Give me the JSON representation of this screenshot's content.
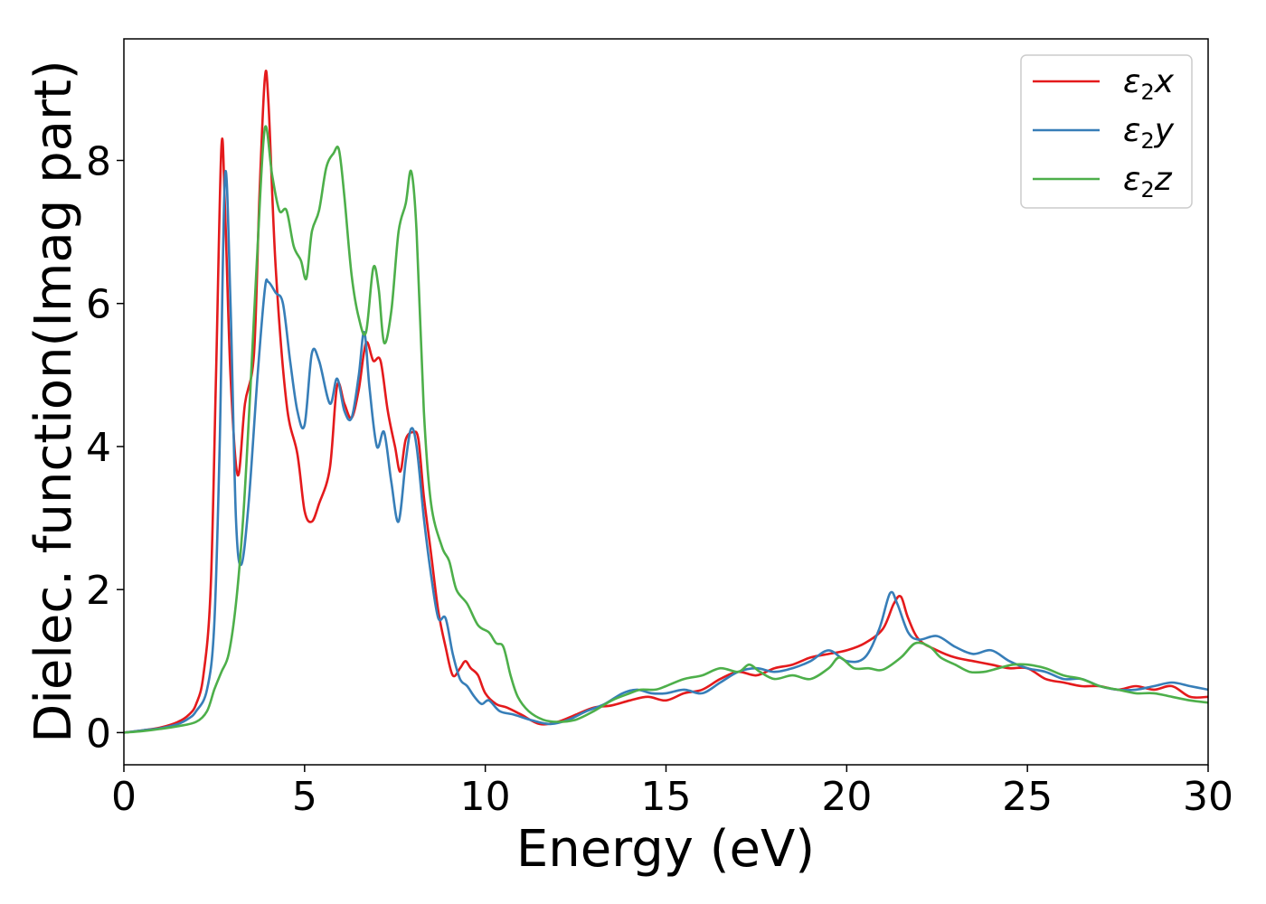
{
  "chart_data": {
    "type": "line",
    "xlabel": "Energy (eV)",
    "ylabel": "Dielec. function(Imag part)",
    "xlim": [
      0,
      30
    ],
    "ylim": [
      -0.45,
      9.7
    ],
    "xticks": [
      0,
      5,
      10,
      15,
      20,
      25,
      30
    ],
    "yticks": [
      0,
      2,
      4,
      6,
      8
    ],
    "xtick_labels": [
      "0",
      "5",
      "10",
      "15",
      "20",
      "25",
      "30"
    ],
    "ytick_labels": [
      "0",
      "2",
      "4",
      "6",
      "8"
    ],
    "grid": false,
    "legend_position": "top-right",
    "series": [
      {
        "label": {
          "base": "ε",
          "sub": "2",
          "var": "x"
        },
        "color": "#e41a1c",
        "points": [
          [
            0,
            0
          ],
          [
            0.5,
            0.03
          ],
          [
            1.0,
            0.07
          ],
          [
            1.5,
            0.15
          ],
          [
            1.8,
            0.25
          ],
          [
            2.0,
            0.4
          ],
          [
            2.2,
            0.8
          ],
          [
            2.4,
            2.0
          ],
          [
            2.55,
            5.0
          ],
          [
            2.7,
            8.2
          ],
          [
            2.8,
            7.3
          ],
          [
            2.95,
            5.0
          ],
          [
            3.15,
            3.6
          ],
          [
            3.35,
            4.6
          ],
          [
            3.6,
            5.3
          ],
          [
            3.75,
            7.5
          ],
          [
            3.9,
            9.15
          ],
          [
            4.0,
            8.8
          ],
          [
            4.2,
            6.5
          ],
          [
            4.5,
            4.6
          ],
          [
            4.8,
            3.9
          ],
          [
            5.0,
            3.1
          ],
          [
            5.2,
            2.95
          ],
          [
            5.4,
            3.2
          ],
          [
            5.7,
            3.7
          ],
          [
            5.9,
            4.85
          ],
          [
            6.1,
            4.6
          ],
          [
            6.3,
            4.4
          ],
          [
            6.5,
            4.8
          ],
          [
            6.7,
            5.45
          ],
          [
            6.9,
            5.2
          ],
          [
            7.1,
            5.2
          ],
          [
            7.3,
            4.5
          ],
          [
            7.5,
            4.0
          ],
          [
            7.65,
            3.65
          ],
          [
            7.8,
            4.1
          ],
          [
            8.0,
            4.2
          ],
          [
            8.15,
            4.1
          ],
          [
            8.3,
            3.3
          ],
          [
            8.5,
            2.5
          ],
          [
            8.7,
            1.7
          ],
          [
            8.9,
            1.2
          ],
          [
            9.1,
            0.8
          ],
          [
            9.3,
            0.9
          ],
          [
            9.45,
            1.0
          ],
          [
            9.6,
            0.9
          ],
          [
            9.8,
            0.8
          ],
          [
            10.0,
            0.55
          ],
          [
            10.3,
            0.4
          ],
          [
            10.6,
            0.35
          ],
          [
            11.0,
            0.25
          ],
          [
            11.5,
            0.12
          ],
          [
            12.0,
            0.15
          ],
          [
            12.5,
            0.25
          ],
          [
            13.0,
            0.35
          ],
          [
            13.5,
            0.38
          ],
          [
            14.0,
            0.45
          ],
          [
            14.5,
            0.5
          ],
          [
            15.0,
            0.45
          ],
          [
            15.5,
            0.55
          ],
          [
            16.0,
            0.6
          ],
          [
            16.5,
            0.75
          ],
          [
            17.0,
            0.85
          ],
          [
            17.5,
            0.8
          ],
          [
            18.0,
            0.9
          ],
          [
            18.5,
            0.95
          ],
          [
            19.0,
            1.05
          ],
          [
            19.5,
            1.1
          ],
          [
            20.0,
            1.15
          ],
          [
            20.5,
            1.25
          ],
          [
            21.0,
            1.45
          ],
          [
            21.3,
            1.8
          ],
          [
            21.5,
            1.9
          ],
          [
            21.7,
            1.6
          ],
          [
            22.0,
            1.3
          ],
          [
            22.5,
            1.15
          ],
          [
            23.0,
            1.05
          ],
          [
            23.5,
            1.0
          ],
          [
            24.0,
            0.95
          ],
          [
            24.5,
            0.9
          ],
          [
            25.0,
            0.9
          ],
          [
            25.5,
            0.75
          ],
          [
            26.0,
            0.7
          ],
          [
            26.5,
            0.65
          ],
          [
            27.0,
            0.65
          ],
          [
            27.5,
            0.6
          ],
          [
            28.0,
            0.65
          ],
          [
            28.5,
            0.6
          ],
          [
            29.0,
            0.65
          ],
          [
            29.5,
            0.5
          ],
          [
            30.0,
            0.5
          ]
        ]
      },
      {
        "label": {
          "base": "ε",
          "sub": "2",
          "var": "y"
        },
        "color": "#377eb8",
        "points": [
          [
            0,
            0
          ],
          [
            0.5,
            0.03
          ],
          [
            1.0,
            0.06
          ],
          [
            1.5,
            0.12
          ],
          [
            1.8,
            0.2
          ],
          [
            2.0,
            0.3
          ],
          [
            2.3,
            0.6
          ],
          [
            2.5,
            1.5
          ],
          [
            2.65,
            4.0
          ],
          [
            2.8,
            7.8
          ],
          [
            2.95,
            6.0
          ],
          [
            3.1,
            3.0
          ],
          [
            3.25,
            2.35
          ],
          [
            3.45,
            3.2
          ],
          [
            3.7,
            5.0
          ],
          [
            3.9,
            6.2
          ],
          [
            4.0,
            6.3
          ],
          [
            4.2,
            6.15
          ],
          [
            4.4,
            6.0
          ],
          [
            4.6,
            5.2
          ],
          [
            4.8,
            4.5
          ],
          [
            5.0,
            4.3
          ],
          [
            5.2,
            5.3
          ],
          [
            5.4,
            5.2
          ],
          [
            5.7,
            4.6
          ],
          [
            5.9,
            4.95
          ],
          [
            6.1,
            4.5
          ],
          [
            6.3,
            4.4
          ],
          [
            6.5,
            5.0
          ],
          [
            6.65,
            5.6
          ],
          [
            6.8,
            4.8
          ],
          [
            7.0,
            4.0
          ],
          [
            7.2,
            4.2
          ],
          [
            7.4,
            3.5
          ],
          [
            7.6,
            2.95
          ],
          [
            7.8,
            3.8
          ],
          [
            7.95,
            4.25
          ],
          [
            8.1,
            4.0
          ],
          [
            8.3,
            3.0
          ],
          [
            8.5,
            2.2
          ],
          [
            8.7,
            1.6
          ],
          [
            8.9,
            1.6
          ],
          [
            9.1,
            1.1
          ],
          [
            9.3,
            0.75
          ],
          [
            9.5,
            0.65
          ],
          [
            9.7,
            0.5
          ],
          [
            9.9,
            0.4
          ],
          [
            10.1,
            0.45
          ],
          [
            10.4,
            0.3
          ],
          [
            10.8,
            0.25
          ],
          [
            11.3,
            0.17
          ],
          [
            11.8,
            0.12
          ],
          [
            12.3,
            0.18
          ],
          [
            12.8,
            0.3
          ],
          [
            13.3,
            0.4
          ],
          [
            13.8,
            0.55
          ],
          [
            14.2,
            0.6
          ],
          [
            14.6,
            0.55
          ],
          [
            15.0,
            0.55
          ],
          [
            15.5,
            0.6
          ],
          [
            16.0,
            0.55
          ],
          [
            16.5,
            0.7
          ],
          [
            17.0,
            0.85
          ],
          [
            17.5,
            0.9
          ],
          [
            18.0,
            0.85
          ],
          [
            18.5,
            0.9
          ],
          [
            19.0,
            1.0
          ],
          [
            19.5,
            1.15
          ],
          [
            20.0,
            1.0
          ],
          [
            20.5,
            1.05
          ],
          [
            20.9,
            1.45
          ],
          [
            21.2,
            1.95
          ],
          [
            21.4,
            1.8
          ],
          [
            21.7,
            1.4
          ],
          [
            22.0,
            1.3
          ],
          [
            22.5,
            1.35
          ],
          [
            23.0,
            1.2
          ],
          [
            23.5,
            1.1
          ],
          [
            24.0,
            1.15
          ],
          [
            24.5,
            1.0
          ],
          [
            25.0,
            0.9
          ],
          [
            25.5,
            0.85
          ],
          [
            26.0,
            0.75
          ],
          [
            26.5,
            0.75
          ],
          [
            27.0,
            0.65
          ],
          [
            27.5,
            0.6
          ],
          [
            28.0,
            0.6
          ],
          [
            28.5,
            0.65
          ],
          [
            29.0,
            0.7
          ],
          [
            29.5,
            0.65
          ],
          [
            30.0,
            0.6
          ]
        ]
      },
      {
        "label": {
          "base": "ε",
          "sub": "2",
          "var": "z"
        },
        "color": "#4daf4a",
        "points": [
          [
            0,
            0
          ],
          [
            0.5,
            0.02
          ],
          [
            1.0,
            0.05
          ],
          [
            1.5,
            0.09
          ],
          [
            2.0,
            0.15
          ],
          [
            2.3,
            0.3
          ],
          [
            2.5,
            0.6
          ],
          [
            2.7,
            0.85
          ],
          [
            2.9,
            1.1
          ],
          [
            3.1,
            1.8
          ],
          [
            3.3,
            3.0
          ],
          [
            3.5,
            4.8
          ],
          [
            3.7,
            6.8
          ],
          [
            3.9,
            8.45
          ],
          [
            4.1,
            7.8
          ],
          [
            4.3,
            7.3
          ],
          [
            4.5,
            7.3
          ],
          [
            4.7,
            6.8
          ],
          [
            4.9,
            6.6
          ],
          [
            5.05,
            6.35
          ],
          [
            5.2,
            7.0
          ],
          [
            5.4,
            7.3
          ],
          [
            5.6,
            7.9
          ],
          [
            5.8,
            8.1
          ],
          [
            5.95,
            8.15
          ],
          [
            6.1,
            7.5
          ],
          [
            6.3,
            6.4
          ],
          [
            6.5,
            5.8
          ],
          [
            6.7,
            5.6
          ],
          [
            6.9,
            6.5
          ],
          [
            7.05,
            6.2
          ],
          [
            7.2,
            5.45
          ],
          [
            7.4,
            5.9
          ],
          [
            7.6,
            7.0
          ],
          [
            7.8,
            7.4
          ],
          [
            7.95,
            7.85
          ],
          [
            8.1,
            7.0
          ],
          [
            8.3,
            4.5
          ],
          [
            8.5,
            3.2
          ],
          [
            8.8,
            2.6
          ],
          [
            9.0,
            2.4
          ],
          [
            9.2,
            2.0
          ],
          [
            9.5,
            1.8
          ],
          [
            9.8,
            1.5
          ],
          [
            10.1,
            1.4
          ],
          [
            10.3,
            1.25
          ],
          [
            10.5,
            1.2
          ],
          [
            10.7,
            0.8
          ],
          [
            10.9,
            0.5
          ],
          [
            11.2,
            0.3
          ],
          [
            11.6,
            0.18
          ],
          [
            12.0,
            0.15
          ],
          [
            12.5,
            0.18
          ],
          [
            13.0,
            0.3
          ],
          [
            13.5,
            0.45
          ],
          [
            14.0,
            0.55
          ],
          [
            14.3,
            0.6
          ],
          [
            14.7,
            0.6
          ],
          [
            15.0,
            0.65
          ],
          [
            15.5,
            0.75
          ],
          [
            16.0,
            0.8
          ],
          [
            16.5,
            0.9
          ],
          [
            17.0,
            0.85
          ],
          [
            17.3,
            0.95
          ],
          [
            17.6,
            0.85
          ],
          [
            18.0,
            0.75
          ],
          [
            18.5,
            0.8
          ],
          [
            19.0,
            0.75
          ],
          [
            19.5,
            0.9
          ],
          [
            19.8,
            1.05
          ],
          [
            20.2,
            0.9
          ],
          [
            20.6,
            0.9
          ],
          [
            21.0,
            0.88
          ],
          [
            21.5,
            1.05
          ],
          [
            21.9,
            1.25
          ],
          [
            22.3,
            1.2
          ],
          [
            22.6,
            1.05
          ],
          [
            23.0,
            0.95
          ],
          [
            23.4,
            0.85
          ],
          [
            23.8,
            0.85
          ],
          [
            24.2,
            0.9
          ],
          [
            24.6,
            0.95
          ],
          [
            25.0,
            0.95
          ],
          [
            25.5,
            0.9
          ],
          [
            26.0,
            0.8
          ],
          [
            26.5,
            0.75
          ],
          [
            27.0,
            0.65
          ],
          [
            27.5,
            0.6
          ],
          [
            28.0,
            0.55
          ],
          [
            28.5,
            0.55
          ],
          [
            29.0,
            0.5
          ],
          [
            29.5,
            0.45
          ],
          [
            30.0,
            0.42
          ]
        ]
      }
    ]
  }
}
